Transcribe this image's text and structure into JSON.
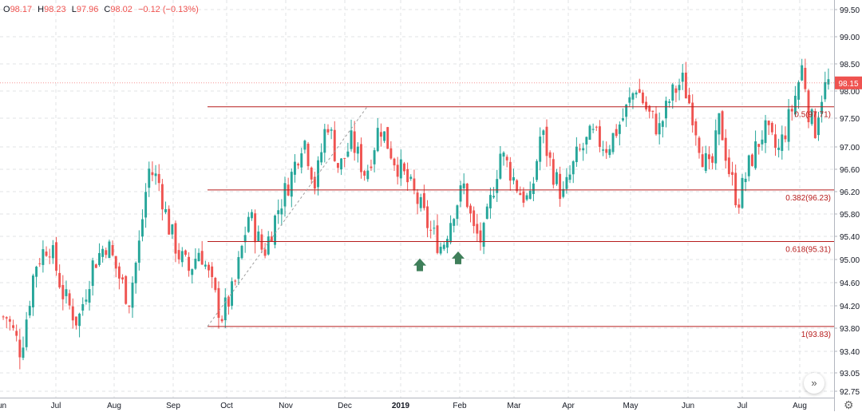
{
  "ohlc": {
    "o_label": "O",
    "o": "98.17",
    "h_label": "H",
    "h": "98.23",
    "l_label": "L",
    "l": "97.96",
    "c_label": "C",
    "c": "98.02",
    "change": "−0.12 (−0.13%)"
  },
  "last_price_label": "98.15",
  "colors": {
    "up": "#26a69a",
    "down": "#ef5350",
    "fib": "#b71c1c",
    "arrow": "#3f7f5a",
    "grid": "#e1e3e6"
  },
  "icons": {
    "scroll": "double-chevron-right-icon",
    "settings": "gear-icon"
  },
  "chart_data": {
    "type": "candlestick",
    "y_axis_ticks": [
      "99.50",
      "99.00",
      "98.50",
      "98.00",
      "97.50",
      "97.00",
      "96.60",
      "96.20",
      "95.80",
      "95.40",
      "95.00",
      "94.60",
      "94.20",
      "93.80",
      "93.40",
      "93.05",
      "92.75"
    ],
    "x_axis_ticks": [
      "Jun",
      "Jul",
      "Aug",
      "Sep",
      "Oct",
      "Nov",
      "Dec",
      "2019",
      "Feb",
      "Mar",
      "Apr",
      "May",
      "Jun",
      "Jul",
      "Aug"
    ],
    "last_price": 98.15,
    "fib_levels": [
      {
        "label": "0.5(97.71)",
        "value": 97.71
      },
      {
        "label": "0.382(96.23)",
        "value": 96.23
      },
      {
        "label": "0.618(95.31)",
        "value": 95.31
      },
      {
        "label": "1(93.83)",
        "value": 93.83
      }
    ],
    "fib_start_month": "Sep",
    "trend_line": {
      "from": {
        "date": "Sep",
        "value": 93.83
      },
      "to": {
        "date": "Dec",
        "value": 97.71
      }
    },
    "markers": [
      {
        "type": "up-arrow",
        "date": "Jan 2019",
        "value": 95.13
      },
      {
        "type": "up-arrow",
        "date": "Feb 2019",
        "value": 95.25
      }
    ],
    "price_path": [
      {
        "x": "Jun",
        "y": 94.0
      },
      {
        "x": "Jun",
        "y": 93.4
      },
      {
        "x": "Jun",
        "y": 94.9
      },
      {
        "x": "Jun",
        "y": 95.3
      },
      {
        "x": "Jul",
        "y": 94.4
      },
      {
        "x": "Jul",
        "y": 93.9
      },
      {
        "x": "Jul",
        "y": 94.9
      },
      {
        "x": "Jul",
        "y": 95.3
      },
      {
        "x": "Aug",
        "y": 94.7
      },
      {
        "x": "Aug",
        "y": 94.3
      },
      {
        "x": "Aug",
        "y": 95.2
      },
      {
        "x": "Aug",
        "y": 96.6
      },
      {
        "x": "Aug",
        "y": 96.4
      },
      {
        "x": "Aug",
        "y": 95.6
      },
      {
        "x": "Sep",
        "y": 95.1
      },
      {
        "x": "Sep",
        "y": 94.8
      },
      {
        "x": "Sep",
        "y": 95.2
      },
      {
        "x": "Sep",
        "y": 94.6
      },
      {
        "x": "Sep",
        "y": 94.0
      },
      {
        "x": "Oct",
        "y": 94.5
      },
      {
        "x": "Oct",
        "y": 95.8
      },
      {
        "x": "Oct",
        "y": 95.1
      },
      {
        "x": "Oct",
        "y": 95.9
      },
      {
        "x": "Nov",
        "y": 96.5
      },
      {
        "x": "Nov",
        "y": 97.2
      },
      {
        "x": "Nov",
        "y": 96.3
      },
      {
        "x": "Nov",
        "y": 97.5
      },
      {
        "x": "Nov",
        "y": 96.6
      },
      {
        "x": "Dec",
        "y": 97.1
      },
      {
        "x": "Dec",
        "y": 96.5
      },
      {
        "x": "Dec",
        "y": 97.4
      },
      {
        "x": "Dec",
        "y": 96.8
      },
      {
        "x": "2019",
        "y": 96.4
      },
      {
        "x": "2019",
        "y": 96.0
      },
      {
        "x": "2019",
        "y": 95.5
      },
      {
        "x": "2019",
        "y": 95.2
      },
      {
        "x": "2019",
        "y": 95.9
      },
      {
        "x": "Feb",
        "y": 96.3
      },
      {
        "x": "Feb",
        "y": 95.5
      },
      {
        "x": "Feb",
        "y": 95.3
      },
      {
        "x": "Feb",
        "y": 96.1
      },
      {
        "x": "Feb",
        "y": 96.9
      },
      {
        "x": "Feb",
        "y": 96.6
      },
      {
        "x": "Mar",
        "y": 96.2
      },
      {
        "x": "Mar",
        "y": 96.0
      },
      {
        "x": "Mar",
        "y": 97.3
      },
      {
        "x": "Mar",
        "y": 96.6
      },
      {
        "x": "Mar",
        "y": 96.1
      },
      {
        "x": "Apr",
        "y": 96.8
      },
      {
        "x": "Apr",
        "y": 97.2
      },
      {
        "x": "Apr",
        "y": 97.0
      },
      {
        "x": "Apr",
        "y": 97.5
      },
      {
        "x": "May",
        "y": 98.1
      },
      {
        "x": "May",
        "y": 97.6
      },
      {
        "x": "May",
        "y": 97.3
      },
      {
        "x": "May",
        "y": 97.9
      },
      {
        "x": "May",
        "y": 98.2
      },
      {
        "x": "Jun",
        "y": 97.6
      },
      {
        "x": "Jun",
        "y": 96.9
      },
      {
        "x": "Jun",
        "y": 96.5
      },
      {
        "x": "Jun",
        "y": 97.5
      },
      {
        "x": "Jun",
        "y": 96.6
      },
      {
        "x": "Jun",
        "y": 96.0
      },
      {
        "x": "Jul",
        "y": 96.7
      },
      {
        "x": "Jul",
        "y": 97.3
      },
      {
        "x": "Jul",
        "y": 96.9
      },
      {
        "x": "Jul",
        "y": 97.7
      },
      {
        "x": "Aug",
        "y": 98.5
      },
      {
        "x": "Aug",
        "y": 97.6
      },
      {
        "x": "Aug",
        "y": 97.3
      },
      {
        "x": "Aug",
        "y": 97.9
      },
      {
        "x": "Aug",
        "y": 98.15
      }
    ]
  }
}
